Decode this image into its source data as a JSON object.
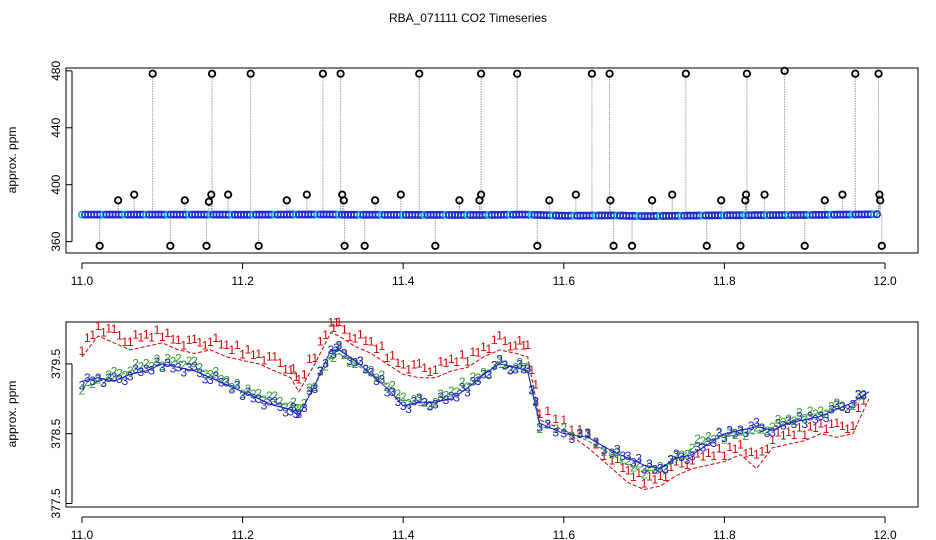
{
  "figure": {
    "title": "RBA_071111  CO2 Timeseries"
  },
  "chart_data": [
    {
      "type": "scatter",
      "panel": "top",
      "xlim": [
        11.0,
        12.0
      ],
      "ylim": [
        352,
        482
      ],
      "xticks": [
        "11.0",
        "11.2",
        "11.4",
        "11.6",
        "11.8",
        "12.0"
      ],
      "yticks": [
        "360",
        "400",
        "440",
        "480"
      ],
      "ylabel": "approx. ppm",
      "xlabel": "",
      "baseline_x": [
        11.0,
        11.05,
        11.1,
        11.16,
        11.2,
        11.3,
        11.33,
        11.4,
        11.5,
        11.55,
        11.6,
        11.66,
        11.7,
        11.8,
        11.9,
        11.99
      ],
      "baseline_y": [
        379.0,
        379.0,
        379.0,
        379.0,
        378.9,
        379.1,
        378.9,
        378.8,
        378.7,
        379.0,
        378.2,
        378.4,
        377.9,
        378.5,
        378.7,
        379.2
      ],
      "spike_high_x": [
        11.088,
        11.162,
        11.21,
        11.3,
        11.322,
        11.42,
        11.497,
        11.542,
        11.635,
        11.657,
        11.752,
        11.828,
        11.875,
        11.963,
        11.992
      ],
      "spike_high_y": [
        478,
        478,
        478,
        478,
        478,
        478,
        478,
        478,
        478,
        478,
        478,
        478,
        480,
        478,
        478
      ],
      "spike_mid_x": [
        11.045,
        11.065,
        11.128,
        11.158,
        11.161,
        11.182,
        11.255,
        11.28,
        11.324,
        11.326,
        11.365,
        11.397,
        11.47,
        11.495,
        11.497,
        11.582,
        11.615,
        11.658,
        11.71,
        11.735,
        11.796,
        11.826,
        11.827,
        11.85,
        11.925,
        11.947,
        11.993,
        11.994
      ],
      "spike_mid_y": [
        389,
        393,
        389,
        388,
        393,
        393,
        389,
        393,
        393,
        389,
        389,
        393,
        389,
        389,
        393,
        389,
        393,
        389,
        389,
        393,
        389,
        389,
        393,
        393,
        389,
        393,
        393,
        389
      ],
      "spike_low_x": [
        11.022,
        11.11,
        11.155,
        11.22,
        11.327,
        11.352,
        11.44,
        11.567,
        11.662,
        11.685,
        11.778,
        11.82,
        11.9,
        11.996
      ],
      "spike_low_y": [
        357,
        357,
        357,
        357,
        357,
        357,
        357,
        357,
        357,
        357,
        357,
        357,
        357,
        357
      ],
      "colors": {
        "baseline": "#1f2ccf",
        "baseline_ring": "#00bcd4",
        "spike": "#000000",
        "spike_line": "#9e9e9e"
      }
    },
    {
      "type": "line",
      "panel": "bottom",
      "xlim": [
        11.0,
        12.0
      ],
      "ylim": [
        377.45,
        380.1
      ],
      "xticks": [
        "11.0",
        "11.2",
        "11.4",
        "11.6",
        "11.8",
        "12.0"
      ],
      "yticks": [
        "377.5",
        "378.5",
        "379.5"
      ],
      "ylabel": "approx. ppm",
      "xlabel": "",
      "series": [
        {
          "name": "1",
          "color": "#d40000",
          "x": [
            11.0,
            11.02,
            11.04,
            11.06,
            11.08,
            11.1,
            11.12,
            11.14,
            11.16,
            11.18,
            11.2,
            11.22,
            11.24,
            11.26,
            11.27,
            11.29,
            11.31,
            11.32,
            11.34,
            11.36,
            11.38,
            11.4,
            11.42,
            11.44,
            11.46,
            11.48,
            11.5,
            11.52,
            11.54,
            11.555,
            11.57,
            11.6,
            11.63,
            11.66,
            11.68,
            11.7,
            11.72,
            11.74,
            11.76,
            11.78,
            11.8,
            11.82,
            11.84,
            11.86,
            11.88,
            11.9,
            11.92,
            11.94,
            11.96,
            11.98
          ],
          "y": [
            379.6,
            379.9,
            379.8,
            379.7,
            379.75,
            379.8,
            379.7,
            379.65,
            379.7,
            379.6,
            379.55,
            379.5,
            379.4,
            379.3,
            379.1,
            379.5,
            379.95,
            379.9,
            379.75,
            379.65,
            379.5,
            379.35,
            379.3,
            379.3,
            379.4,
            379.45,
            379.6,
            379.7,
            379.65,
            379.6,
            378.7,
            378.55,
            378.3,
            378.0,
            377.8,
            377.7,
            377.75,
            377.9,
            378.0,
            378.05,
            378.1,
            378.2,
            378.0,
            378.3,
            378.35,
            378.4,
            378.5,
            378.45,
            378.5,
            379.0
          ]
        },
        {
          "name": "2",
          "color": "#2aa02a",
          "x": [
            11.0,
            11.02,
            11.04,
            11.06,
            11.08,
            11.1,
            11.12,
            11.14,
            11.16,
            11.18,
            11.2,
            11.22,
            11.24,
            11.26,
            11.27,
            11.29,
            11.31,
            11.32,
            11.34,
            11.36,
            11.38,
            11.4,
            11.42,
            11.44,
            11.46,
            11.48,
            11.5,
            11.52,
            11.54,
            11.555,
            11.57,
            11.6,
            11.63,
            11.66,
            11.68,
            11.7,
            11.72,
            11.74,
            11.76,
            11.78,
            11.8,
            11.82,
            11.84,
            11.86,
            11.88,
            11.9,
            11.92,
            11.94,
            11.96,
            11.98
          ],
          "y": [
            379.15,
            379.25,
            379.3,
            379.4,
            379.45,
            379.5,
            379.55,
            379.45,
            379.35,
            379.2,
            379.1,
            379.05,
            378.95,
            378.9,
            378.8,
            379.2,
            379.6,
            379.65,
            379.5,
            379.35,
            379.2,
            379.0,
            378.9,
            378.95,
            379.05,
            379.2,
            379.35,
            379.45,
            379.45,
            379.4,
            378.6,
            378.55,
            378.4,
            378.2,
            378.05,
            377.95,
            378.0,
            378.1,
            378.3,
            378.4,
            378.45,
            378.5,
            378.5,
            378.6,
            378.65,
            378.75,
            378.8,
            378.85,
            378.9,
            379.1
          ]
        },
        {
          "name": "3",
          "color": "#1c1ccc",
          "x": [
            11.0,
            11.02,
            11.04,
            11.06,
            11.08,
            11.1,
            11.12,
            11.14,
            11.16,
            11.18,
            11.2,
            11.22,
            11.24,
            11.26,
            11.27,
            11.29,
            11.31,
            11.32,
            11.34,
            11.36,
            11.38,
            11.4,
            11.42,
            11.44,
            11.46,
            11.48,
            11.5,
            11.52,
            11.54,
            11.555,
            11.57,
            11.6,
            11.63,
            11.66,
            11.68,
            11.7,
            11.72,
            11.74,
            11.76,
            11.78,
            11.8,
            11.82,
            11.84,
            11.86,
            11.88,
            11.9,
            11.92,
            11.94,
            11.96,
            11.98
          ],
          "y": [
            379.25,
            379.3,
            379.25,
            379.35,
            379.4,
            379.5,
            379.45,
            379.4,
            379.3,
            379.2,
            379.1,
            379.0,
            378.9,
            378.85,
            378.75,
            379.2,
            379.7,
            379.7,
            379.55,
            379.35,
            379.15,
            378.9,
            378.95,
            378.95,
            379.0,
            379.15,
            379.35,
            379.5,
            379.45,
            379.4,
            378.65,
            378.5,
            378.45,
            378.25,
            378.15,
            378.05,
            378.0,
            378.15,
            378.2,
            378.35,
            378.5,
            378.55,
            378.6,
            378.55,
            378.65,
            378.7,
            378.75,
            378.85,
            378.95,
            379.1
          ]
        }
      ]
    }
  ]
}
